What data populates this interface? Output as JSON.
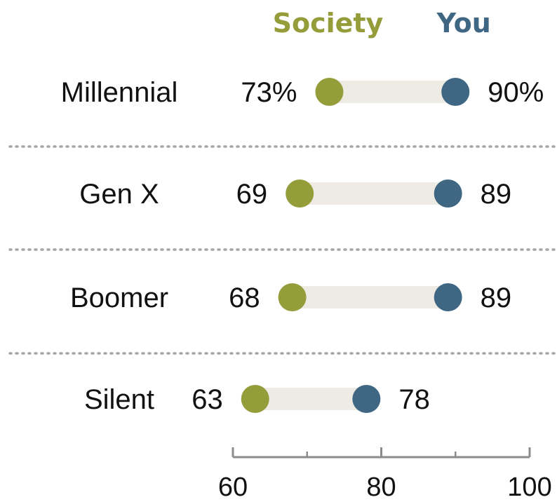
{
  "chart_data": {
    "type": "dumbbell",
    "series": [
      {
        "name": "Society",
        "color": "#959C3A"
      },
      {
        "name": "You",
        "color": "#3F6784"
      }
    ],
    "rows": [
      {
        "label": "Millennial",
        "society": 73,
        "you": 90,
        "society_label": "73%",
        "you_label": "90%"
      },
      {
        "label": "Gen X",
        "society": 69,
        "you": 89,
        "society_label": "69",
        "you_label": "89"
      },
      {
        "label": "Boomer",
        "society": 68,
        "you": 89,
        "society_label": "68",
        "you_label": "89"
      },
      {
        "label": "Silent",
        "society": 63,
        "you": 78,
        "society_label": "63",
        "you_label": "78"
      }
    ],
    "xlim": [
      60,
      100
    ],
    "ticks": [
      60,
      80,
      100
    ],
    "minor_ticks": [
      70,
      90
    ],
    "connector_color": "#EEEBE4",
    "separator_color": "#A6A6A6",
    "axis_color": "#8C8C8C"
  }
}
